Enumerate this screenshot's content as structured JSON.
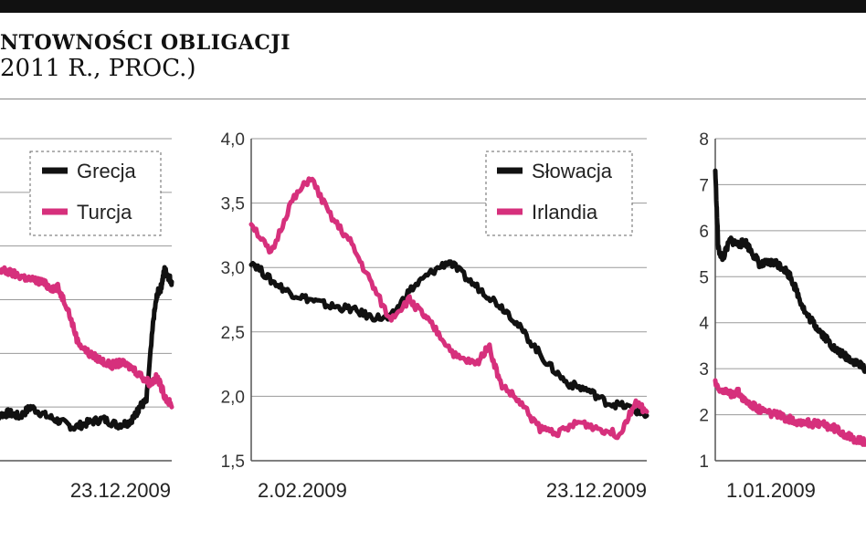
{
  "header": {
    "title": "NTOWNOŚCI OBLIGACJI",
    "subtitle": "2011 R., PROC.)"
  },
  "colors": {
    "black_series": "#111111",
    "pink_series": "#d6307c"
  },
  "chart_data": [
    {
      "type": "line",
      "title": "",
      "x_tick_labels": [
        "23.12.2009"
      ],
      "ylim": [
        1.6,
        4.3
      ],
      "y_ticks": [],
      "grid": true,
      "legend": {
        "position": "top-right",
        "entries": [
          "Grecja",
          "Turcja"
        ]
      },
      "series": [
        {
          "name": "Grecja",
          "color": "#111111",
          "x": [
            0,
            0.04,
            0.1,
            0.16,
            0.22,
            0.3,
            0.38,
            0.46,
            0.54,
            0.62,
            0.7,
            0.76,
            0.8,
            0.82,
            0.86,
            0.9,
            0.92,
            0.94,
            0.96,
            0.98,
            1.0
          ],
          "values": [
            2.0,
            1.98,
            2.0,
            1.97,
            2.05,
            1.98,
            1.93,
            1.88,
            1.92,
            1.95,
            1.9,
            1.92,
            1.98,
            2.05,
            2.1,
            2.8,
            3.0,
            3.05,
            3.2,
            3.15,
            3.1
          ]
        },
        {
          "name": "Turcja",
          "color": "#d6307c",
          "x": [
            0,
            0.05,
            0.1,
            0.16,
            0.22,
            0.28,
            0.33,
            0.37,
            0.42,
            0.48,
            0.54,
            0.6,
            0.66,
            0.72,
            0.78,
            0.84,
            0.88,
            0.92,
            0.96,
            1.0
          ],
          "values": [
            3.2,
            3.2,
            3.18,
            3.15,
            3.12,
            3.1,
            3.05,
            3.05,
            2.9,
            2.6,
            2.5,
            2.45,
            2.4,
            2.42,
            2.38,
            2.3,
            2.25,
            2.3,
            2.15,
            2.05
          ]
        }
      ]
    },
    {
      "type": "line",
      "title": "",
      "x_tick_labels": [
        "2.02.2009",
        "23.12.2009"
      ],
      "ylim": [
        1.5,
        4.0
      ],
      "y_ticks": [
        "4,0",
        "3,5",
        "3,0",
        "2,5",
        "2,0",
        "1,5"
      ],
      "grid": true,
      "legend": {
        "position": "top-right",
        "entries": [
          "Słowacja",
          "Irlandia"
        ]
      },
      "series": [
        {
          "name": "Słowacja",
          "color": "#111111",
          "x": [
            0,
            0.05,
            0.1,
            0.15,
            0.2,
            0.25,
            0.3,
            0.35,
            0.4,
            0.45,
            0.5,
            0.55,
            0.6,
            0.65,
            0.7,
            0.75,
            0.8,
            0.85,
            0.9,
            0.95,
            1.0
          ],
          "values": [
            3.05,
            2.9,
            2.8,
            2.75,
            2.7,
            2.68,
            2.62,
            2.6,
            2.82,
            2.95,
            3.05,
            2.9,
            2.78,
            2.65,
            2.45,
            2.25,
            2.1,
            2.05,
            1.95,
            1.92,
            1.85
          ]
        },
        {
          "name": "Irlandia",
          "color": "#d6307c",
          "x": [
            0,
            0.05,
            0.1,
            0.15,
            0.2,
            0.25,
            0.3,
            0.35,
            0.4,
            0.43,
            0.47,
            0.52,
            0.57,
            0.6,
            0.63,
            0.68,
            0.73,
            0.78,
            0.83,
            0.88,
            0.93,
            0.97,
            1.0
          ],
          "values": [
            3.35,
            3.1,
            3.5,
            3.7,
            3.4,
            3.2,
            2.9,
            2.6,
            2.75,
            2.65,
            2.5,
            2.3,
            2.25,
            2.4,
            2.1,
            1.95,
            1.75,
            1.72,
            1.8,
            1.75,
            1.7,
            1.95,
            1.88
          ]
        }
      ]
    },
    {
      "type": "line",
      "title": "",
      "x_tick_labels": [
        "1.01.2009"
      ],
      "ylim": [
        1,
        8
      ],
      "y_ticks": [
        "8",
        "7",
        "6",
        "5",
        "4",
        "3",
        "2",
        "1"
      ],
      "grid": true,
      "legend": {
        "position": "top-right",
        "entries": []
      },
      "series": [
        {
          "name": "",
          "color": "#111111",
          "x": [
            0,
            0.02,
            0.05,
            0.1,
            0.15,
            0.2,
            0.25,
            0.3,
            0.35,
            0.4,
            0.45,
            0.5,
            0.55,
            0.6,
            0.65,
            0.7,
            0.75,
            0.8,
            0.85,
            0.9,
            0.95,
            1.0
          ],
          "values": [
            7.3,
            5.6,
            5.4,
            5.8,
            5.7,
            5.75,
            5.5,
            5.25,
            5.3,
            5.3,
            5.2,
            5.0,
            4.6,
            4.2,
            4.0,
            3.8,
            3.6,
            3.4,
            3.3,
            3.2,
            3.1,
            3.0
          ]
        },
        {
          "name": "",
          "color": "#d6307c",
          "x": [
            0,
            0.05,
            0.1,
            0.15,
            0.2,
            0.25,
            0.3,
            0.35,
            0.4,
            0.45,
            0.5,
            0.55,
            0.6,
            0.65,
            0.7,
            0.75,
            0.8,
            0.85,
            0.9,
            0.95,
            1.0
          ],
          "values": [
            2.7,
            2.5,
            2.45,
            2.5,
            2.3,
            2.2,
            2.1,
            2.05,
            2.0,
            1.95,
            1.9,
            1.85,
            1.85,
            1.8,
            1.8,
            1.75,
            1.7,
            1.6,
            1.5,
            1.45,
            1.4
          ]
        }
      ]
    }
  ]
}
